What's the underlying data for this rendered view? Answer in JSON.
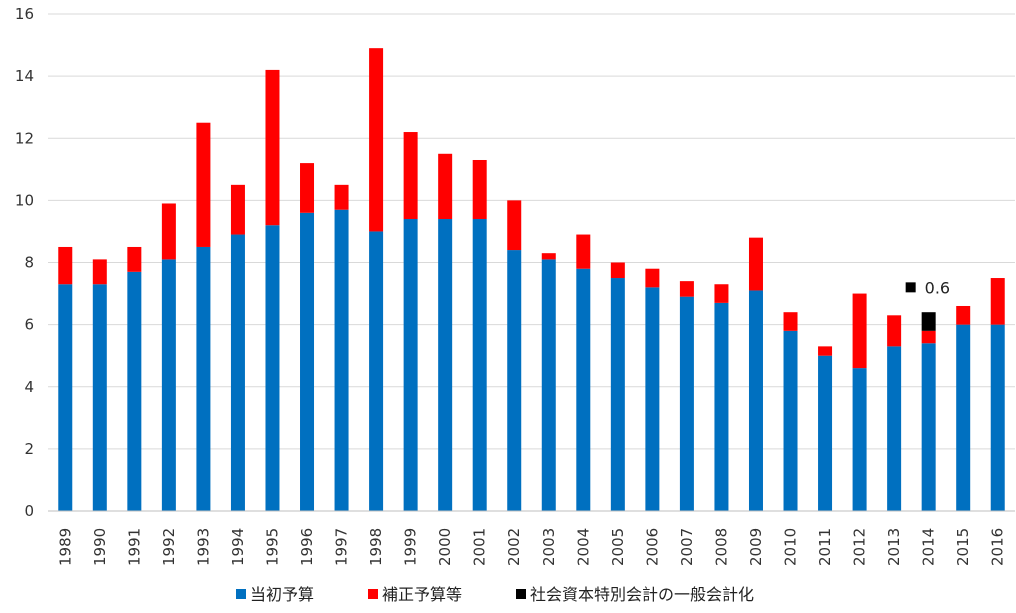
{
  "chart_data": {
    "type": "bar",
    "stacked": true,
    "categories": [
      "1989",
      "1990",
      "1991",
      "1992",
      "1993",
      "1994",
      "1995",
      "1996",
      "1997",
      "1998",
      "1999",
      "2000",
      "2001",
      "2002",
      "2003",
      "2004",
      "2005",
      "2006",
      "2007",
      "2008",
      "2009",
      "2010",
      "2011",
      "2012",
      "2013",
      "2014",
      "2015",
      "2016"
    ],
    "series": [
      {
        "name": "当初予算",
        "color": "#0070c0",
        "values": [
          7.3,
          7.3,
          7.7,
          8.1,
          8.5,
          8.9,
          9.2,
          9.6,
          9.7,
          9.0,
          9.4,
          9.4,
          9.4,
          8.4,
          8.1,
          7.8,
          7.5,
          7.2,
          6.9,
          6.7,
          7.1,
          5.8,
          5.0,
          4.6,
          5.3,
          5.4,
          6.0,
          6.0
        ]
      },
      {
        "name": "補正予算等",
        "color": "#ff0000",
        "values": [
          1.2,
          0.8,
          0.8,
          1.8,
          4.0,
          1.6,
          5.0,
          1.6,
          0.8,
          5.9,
          2.8,
          2.1,
          1.9,
          1.6,
          0.2,
          1.1,
          0.5,
          0.6,
          0.5,
          0.6,
          1.7,
          0.6,
          0.3,
          2.4,
          1.0,
          0.4,
          0.6,
          1.5
        ]
      },
      {
        "name": "社会資本特別会計の一般会計化",
        "color": "#000000",
        "values": [
          0,
          0,
          0,
          0,
          0,
          0,
          0,
          0,
          0,
          0,
          0,
          0,
          0,
          0,
          0,
          0,
          0,
          0,
          0,
          0,
          0,
          0,
          0,
          0,
          0,
          0.6,
          0,
          0
        ]
      }
    ],
    "ylim": [
      0,
      16
    ],
    "yticks": [
      "0",
      "2",
      "4",
      "6",
      "8",
      "10",
      "12",
      "14",
      "16"
    ],
    "grid": "horizontal",
    "legend_position": "bottom",
    "annotations": [
      {
        "category": "2014",
        "label": "0.6",
        "y": 7.2,
        "color": "#000000"
      }
    ]
  }
}
